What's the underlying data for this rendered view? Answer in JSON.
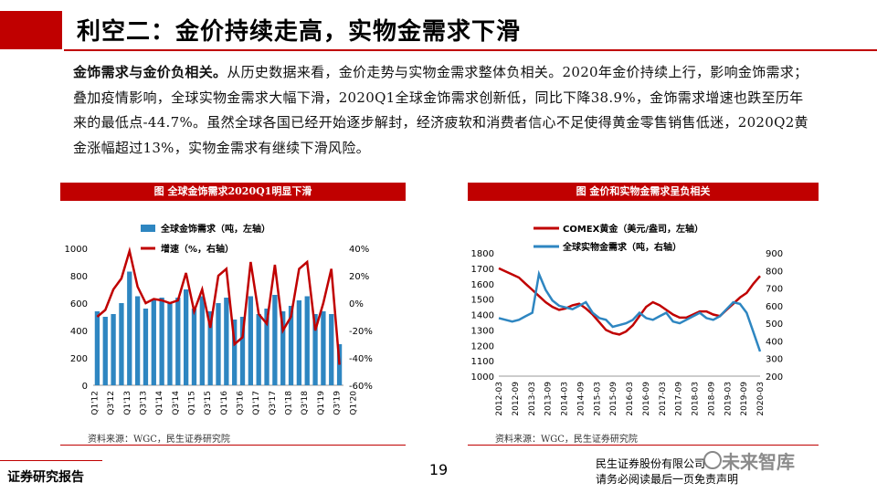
{
  "title": "利空二：金价持续走高，实物金需求下滑",
  "paragraph": {
    "lead": "金饰需求与金价负相关。",
    "body": "从历史数据来看，金价走势与实物金需求整体负相关。2020年金价持续上行，影响金饰需求；叠加疫情影响，全球实物金需求大幅下滑，2020Q1全球金饰需求创新低，同比下降38.9%，金饰需求增速也跌至历年来的最低点-44.7%。虽然全球各国已经开始逐步解封，经济疲软和消费者信心不足使得黄金零售销售低迷，2020Q2黄金涨幅超过13%，实物金需求有继续下滑风险。"
  },
  "footer": {
    "left": "证券研究报告",
    "page": "19",
    "right_line1": "民生证券股份有限公司",
    "right_line2": "请务必阅读最后一页免责声明",
    "watermark": "未来智库"
  },
  "colors": {
    "accent": "#c00000",
    "bar": "#2e86c1",
    "line_red": "#c00000",
    "line_blue": "#2e86c1"
  },
  "chart_data": [
    {
      "type": "bar",
      "title": "图 全球金饰需求2020Q1明显下滑",
      "source": "资料来源：WGC，民生证券研究院",
      "series": [
        {
          "name": "全球金饰需求（吨，左轴）",
          "axis": "left",
          "type": "bar",
          "values": [
            540,
            500,
            520,
            600,
            830,
            650,
            560,
            630,
            640,
            600,
            640,
            700,
            560,
            650,
            540,
            600,
            640,
            480,
            500,
            650,
            520,
            560,
            660,
            540,
            580,
            620,
            650,
            520,
            540,
            520,
            300
          ]
        },
        {
          "name": "增速（%，右轴）",
          "axis": "right",
          "type": "line",
          "values": [
            -10,
            -5,
            10,
            18,
            38,
            12,
            0,
            3,
            2,
            0,
            2,
            22,
            -6,
            10,
            -18,
            20,
            25,
            -30,
            -25,
            30,
            -8,
            -15,
            28,
            -20,
            -10,
            25,
            30,
            -20,
            0,
            25,
            -45
          ]
        }
      ],
      "xticks": [
        "Q1'12",
        "Q3'12",
        "Q1'13",
        "Q3'13",
        "Q1'14",
        "Q3'14",
        "Q1'15",
        "Q3'15",
        "Q1'16",
        "Q3'16",
        "Q1'17",
        "Q3'17",
        "Q1'18",
        "Q3'18",
        "Q1'19",
        "Q3'19",
        "Q1'20"
      ],
      "yleft": {
        "min": 0,
        "max": 1000,
        "ticks": [
          0,
          200,
          400,
          600,
          800,
          1000
        ]
      },
      "yright": {
        "min": -60,
        "max": 40,
        "ticks": [
          "40%",
          "20%",
          "0%",
          "-20%",
          "-40%",
          "-60%"
        ]
      }
    },
    {
      "type": "line",
      "title": "图 金价和实物金需求呈负相关",
      "source": "资料来源：WGC，民生证券研究院",
      "series": [
        {
          "name": "COMEX黄金（美元/盎司，左轴）",
          "axis": "left",
          "values": [
            1700,
            1680,
            1660,
            1640,
            1600,
            1560,
            1520,
            1480,
            1450,
            1430,
            1440,
            1460,
            1470,
            1440,
            1400,
            1350,
            1300,
            1280,
            1270,
            1290,
            1330,
            1390,
            1450,
            1480,
            1460,
            1430,
            1400,
            1380,
            1380,
            1400,
            1420,
            1420,
            1400,
            1390,
            1430,
            1470,
            1510,
            1540,
            1600,
            1650
          ]
        },
        {
          "name": "全球实物金需求（吨，右轴）",
          "axis": "right",
          "values": [
            530,
            520,
            510,
            520,
            540,
            560,
            780,
            690,
            630,
            600,
            590,
            580,
            600,
            620,
            560,
            530,
            520,
            480,
            490,
            500,
            520,
            560,
            530,
            520,
            540,
            560,
            510,
            500,
            520,
            540,
            560,
            530,
            520,
            540,
            580,
            620,
            610,
            560,
            450,
            340
          ]
        }
      ],
      "xticks": [
        "2012-03",
        "2012-09",
        "2013-03",
        "2013-09",
        "2014-03",
        "2014-09",
        "2015-03",
        "2015-09",
        "2016-03",
        "2016-09",
        "2017-03",
        "2017-09",
        "2018-03",
        "2018-09",
        "2019-03",
        "2019-09",
        "2020-03"
      ],
      "yleft": {
        "min": 1000,
        "max": 1800,
        "ticks": [
          1000,
          1100,
          1200,
          1300,
          1400,
          1500,
          1600,
          1700,
          1800
        ]
      },
      "yright": {
        "min": 200,
        "max": 900,
        "ticks": [
          200,
          300,
          400,
          500,
          600,
          700,
          800,
          900
        ]
      }
    }
  ]
}
